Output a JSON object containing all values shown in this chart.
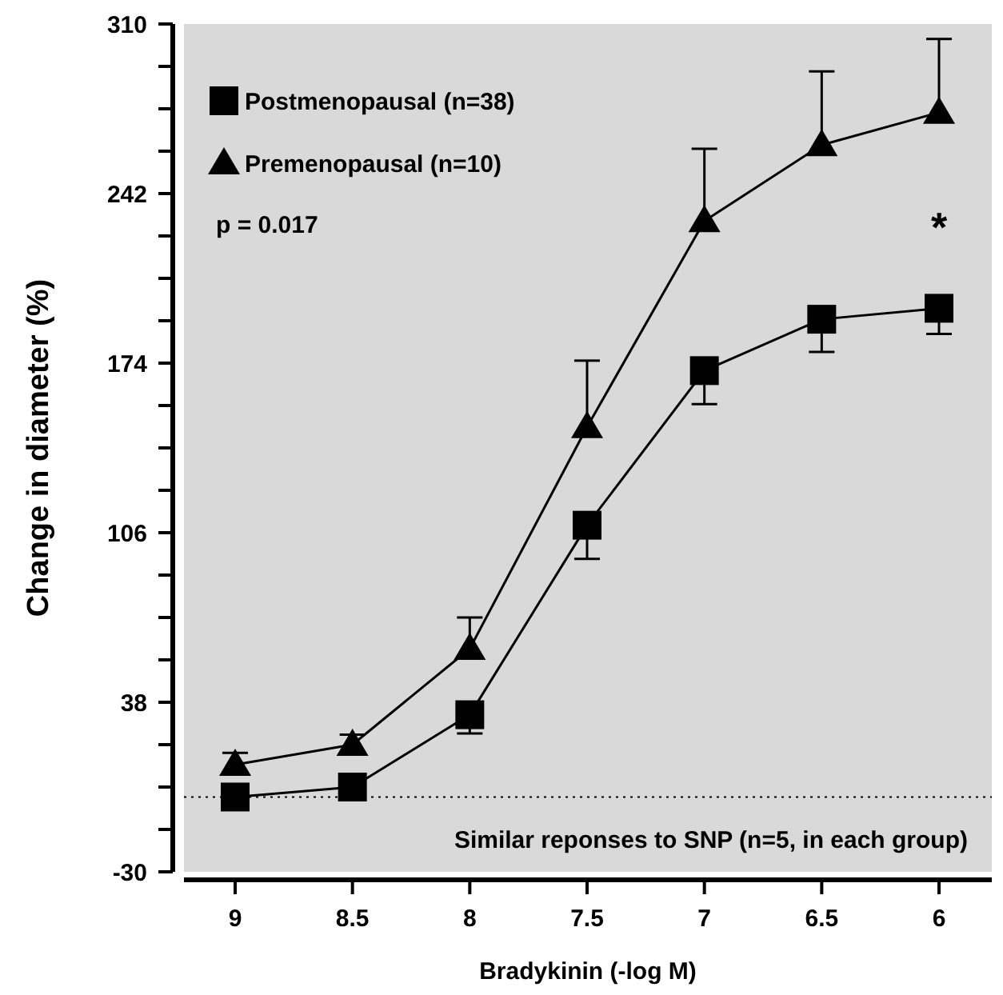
{
  "chart_data": {
    "type": "line",
    "xlabel": "Bradykinin (-log M)",
    "ylabel": "Change in diameter (%)",
    "categories": [
      "9",
      "8.5",
      "8",
      "7.5",
      "7",
      "6.5",
      "6"
    ],
    "series": [
      {
        "name": "Postmenopausal (n=38)",
        "color": "#000000",
        "marker": "square",
        "values": [
          0,
          4,
          33,
          109,
          171,
          191.6,
          196
        ],
        "errors": [
          null,
          null,
          [
            25.5,
            33
          ],
          [
            95.5,
            109
          ],
          [
            157.6,
            171
          ],
          [
            178.5,
            191.6
          ],
          [
            185.7,
            196
          ]
        ]
      },
      {
        "name": "Premenopausal (n=10)",
        "color": "#000000",
        "marker": "triangle",
        "values": [
          13,
          21,
          59.5,
          148.4,
          231,
          261.5,
          274.5
        ],
        "errors": [
          [
            13,
            17.7
          ],
          [
            21,
            25
          ],
          [
            59.5,
            72
          ],
          [
            148.4,
            175
          ],
          [
            231,
            260
          ],
          [
            261.5,
            291
          ],
          [
            274.5,
            304
          ]
        ]
      }
    ],
    "ylim": [
      -30,
      310
    ],
    "yticks": [
      -30,
      {
        "value": -13,
        "label": null
      },
      {
        "value": 4,
        "label": null
      },
      {
        "value": 21,
        "label": null
      },
      38,
      {
        "value": 55,
        "label": null
      },
      {
        "value": 72,
        "label": null
      },
      {
        "value": 89,
        "label": null
      },
      106,
      {
        "value": 123,
        "label": null
      },
      {
        "value": 140,
        "label": null
      },
      {
        "value": 157,
        "label": null
      },
      174,
      {
        "value": 191,
        "label": null
      },
      {
        "value": 208,
        "label": null
      },
      {
        "value": 225,
        "label": null
      },
      242,
      {
        "value": 259,
        "label": null
      },
      {
        "value": 276,
        "label": null
      },
      {
        "value": 293,
        "label": null
      },
      310
    ],
    "ref_lines": [
      {
        "axis": "y",
        "value": 0,
        "line_style": "dotted",
        "color": "#000000"
      }
    ],
    "annotations": [
      "p = 0.017",
      "*",
      "Similar reponses to SNP (n=5, in each group)"
    ],
    "legend": "top left",
    "grid": false,
    "line_style": "solid"
  }
}
